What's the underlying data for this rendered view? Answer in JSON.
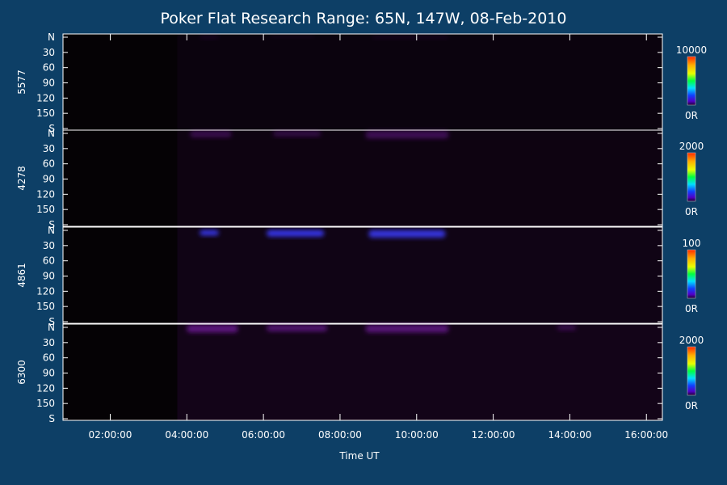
{
  "title": "Poker Flat Research Range: 65N, 147W, 08-Feb-2010",
  "colors": {
    "background": "#0d3f66",
    "plot_background": "#050205",
    "axis": "#ffffff",
    "emission": "#7a1aa8",
    "bright_emission": "#3c3cff"
  },
  "chart_data": {
    "type": "heatmap",
    "title": "Poker Flat Research Range: 65N, 147W, 08-Feb-2010",
    "xlabel": "Time UT",
    "x_ticks": [
      "02:00:00",
      "04:00:00",
      "06:00:00",
      "08:00:00",
      "10:00:00",
      "12:00:00",
      "14:00:00",
      "16:00:00"
    ],
    "x_range": [
      "00:46:00",
      "16:25:00"
    ],
    "y_ticks": [
      "N",
      "30",
      "60",
      "90",
      "120",
      "150",
      "S"
    ],
    "y_range": [
      0,
      180
    ],
    "colorbar_min_label": "0R",
    "panels": [
      {
        "name": "5577",
        "colorbar_max": "10000",
        "data_start": "03:45:00",
        "bright_regions": [
          {
            "t_start": "04:20:00",
            "t_end": "04:50:00",
            "y_start": 0,
            "y_end": 8,
            "intensity": 0.12
          },
          {
            "t_start": "06:10:00",
            "t_end": "07:20:00",
            "y_start": 0,
            "y_end": 6,
            "intensity": 0.08
          },
          {
            "t_start": "08:50:00",
            "t_end": "10:50:00",
            "y_start": 0,
            "y_end": 8,
            "intensity": 0.1
          }
        ]
      },
      {
        "name": "4278",
        "colorbar_max": "2000",
        "data_start": "03:45:00",
        "bright_regions": [
          {
            "t_start": "04:05:00",
            "t_end": "05:10:00",
            "y_start": 0,
            "y_end": 12,
            "intensity": 0.45
          },
          {
            "t_start": "06:15:00",
            "t_end": "07:30:00",
            "y_start": 0,
            "y_end": 10,
            "intensity": 0.4
          },
          {
            "t_start": "08:40:00",
            "t_end": "10:50:00",
            "y_start": 0,
            "y_end": 14,
            "intensity": 0.5
          }
        ]
      },
      {
        "name": "4861",
        "colorbar_max": "100",
        "data_start": "03:45:00",
        "bright_regions": [
          {
            "t_start": "04:20:00",
            "t_end": "04:50:00",
            "y_start": 4,
            "y_end": 14,
            "intensity": 1.0
          },
          {
            "t_start": "06:05:00",
            "t_end": "07:35:00",
            "y_start": 4,
            "y_end": 16,
            "intensity": 1.0
          },
          {
            "t_start": "08:45:00",
            "t_end": "10:45:00",
            "y_start": 4,
            "y_end": 18,
            "intensity": 0.95
          }
        ]
      },
      {
        "name": "6300",
        "colorbar_max": "2000",
        "data_start": "03:45:00",
        "bright_regions": [
          {
            "t_start": "04:00:00",
            "t_end": "05:20:00",
            "y_start": 0,
            "y_end": 14,
            "intensity": 0.8
          },
          {
            "t_start": "06:05:00",
            "t_end": "07:40:00",
            "y_start": 0,
            "y_end": 12,
            "intensity": 0.7
          },
          {
            "t_start": "08:40:00",
            "t_end": "10:50:00",
            "y_start": 0,
            "y_end": 14,
            "intensity": 0.75
          },
          {
            "t_start": "13:40:00",
            "t_end": "14:10:00",
            "y_start": 0,
            "y_end": 10,
            "intensity": 0.4
          }
        ]
      }
    ]
  }
}
